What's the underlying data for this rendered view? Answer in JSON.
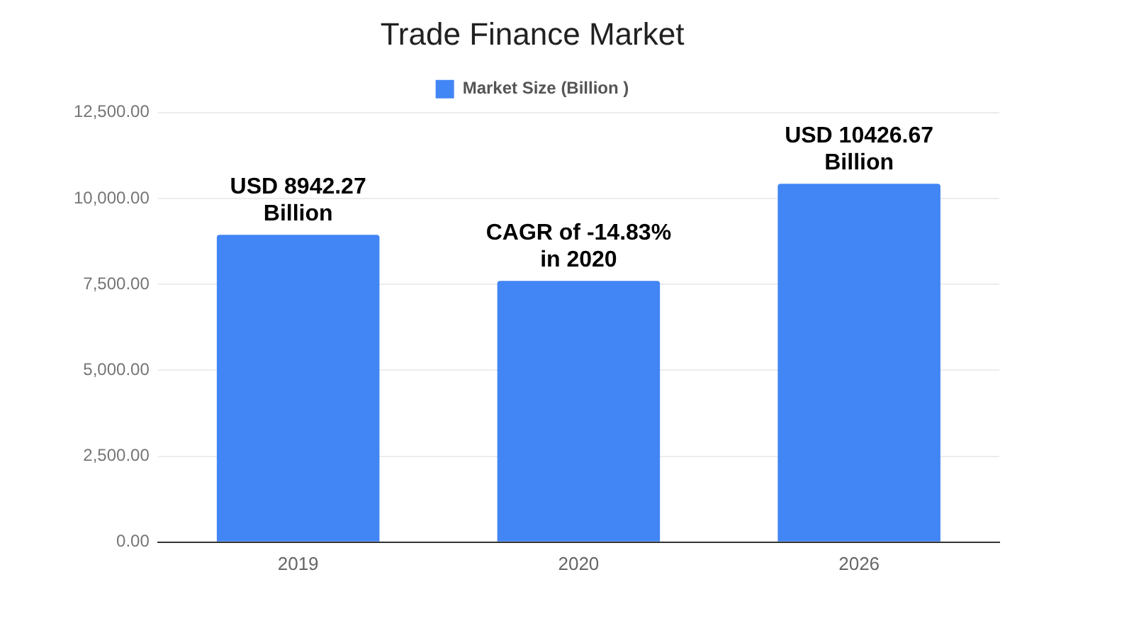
{
  "chart_data": {
    "type": "bar",
    "title": "Trade Finance Market",
    "categories": [
      "2019",
      "2020",
      "2026"
    ],
    "series": [
      {
        "name": "Market Size (Billion )",
        "color": "#4285f4",
        "values": [
          8942.27,
          7600,
          10426.67
        ],
        "value_labels": [
          "USD 8942.27 Billion",
          null,
          "USD 10426.67 Billion"
        ]
      }
    ],
    "annotations": [
      {
        "text": "CAGR of -14.83% in 2020",
        "x": "2020",
        "y": 7600
      }
    ],
    "ylim": [
      0,
      12500
    ],
    "yticks": [
      {
        "value": 0,
        "label": "0.00"
      },
      {
        "value": 2500,
        "label": "2,500.00"
      },
      {
        "value": 5000,
        "label": "5,000.00"
      },
      {
        "value": 7500,
        "label": "7,500.00"
      },
      {
        "value": 10000,
        "label": "10,000.00"
      },
      {
        "value": 12500,
        "label": "12,500.00"
      }
    ],
    "grid": "y",
    "legend": "top"
  }
}
